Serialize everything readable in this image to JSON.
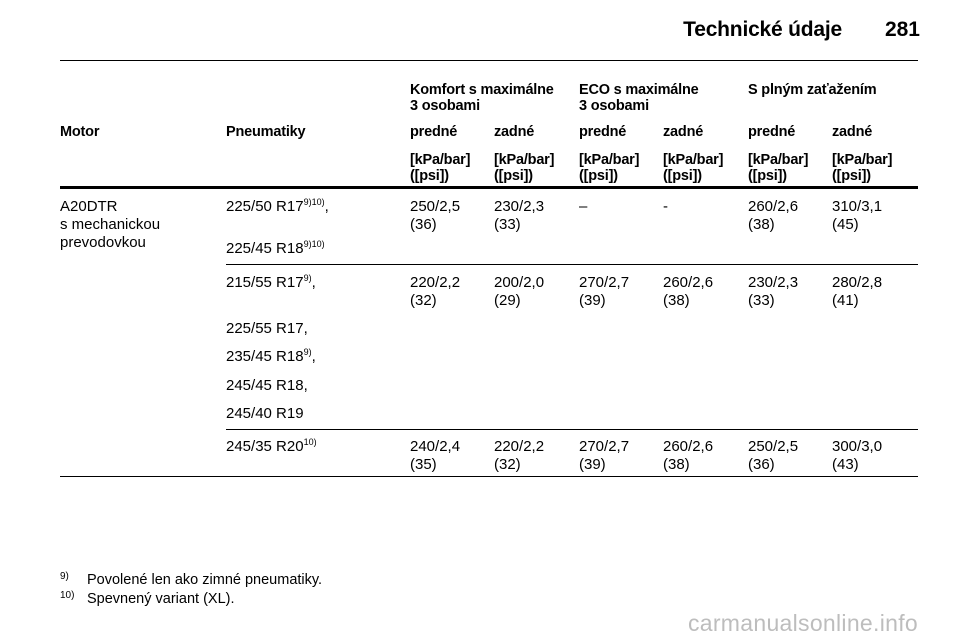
{
  "header": {
    "title": "Technické údaje",
    "page_number": "281"
  },
  "table": {
    "groups": [
      "Komfort s maximálne\n3 osobami",
      "ECO s maximálne\n3 osobami",
      "S plným zaťažením"
    ],
    "col_motor": "Motor",
    "col_tires": "Pneumatiky",
    "axles": [
      "predné",
      "zadné",
      "predné",
      "zadné",
      "predné",
      "zadné"
    ],
    "unit": "[kPa/bar]\n([psi])",
    "motor": "A20DTR\ns mechanickou\nprevodovkou",
    "rows": [
      {
        "tires": [
          {
            "size": "225/50 R17",
            "note": "9)10)",
            "suffix": ","
          },
          {
            "size": "225/45 R18",
            "note": "9)10)",
            "suffix": ""
          }
        ],
        "values": [
          "250/2,5\n(36)",
          "230/2,3\n(33)",
          "–",
          "-",
          "260/2,6\n(38)",
          "310/3,1\n(45)"
        ]
      },
      {
        "tires": [
          {
            "size": "215/55 R17",
            "note": "9)",
            "suffix": ","
          },
          {
            "size": "225/55 R17,",
            "note": "",
            "suffix": ""
          },
          {
            "size": "235/45 R18",
            "note": "9)",
            "suffix": ","
          },
          {
            "size": "245/45 R18,",
            "note": "",
            "suffix": ""
          },
          {
            "size": "245/40 R19",
            "note": "",
            "suffix": ""
          }
        ],
        "values": [
          "220/2,2\n(32)",
          "200/2,0\n(29)",
          "270/2,7\n(39)",
          "260/2,6\n(38)",
          "230/2,3\n(33)",
          "280/2,8\n(41)"
        ]
      },
      {
        "tires": [
          {
            "size": "245/35 R20",
            "note": "10)",
            "suffix": ""
          }
        ],
        "values": [
          "240/2,4\n(35)",
          "220/2,2\n(32)",
          "270/2,7\n(39)",
          "260/2,6\n(38)",
          "250/2,5\n(36)",
          "300/3,0\n(43)"
        ]
      }
    ]
  },
  "footnotes": [
    {
      "num": "9)",
      "text": "Povolené len ako zimné pneumatiky."
    },
    {
      "num": "10)",
      "text": "Spevnený variant (XL)."
    }
  ],
  "watermark": "carmanualsonline.info"
}
